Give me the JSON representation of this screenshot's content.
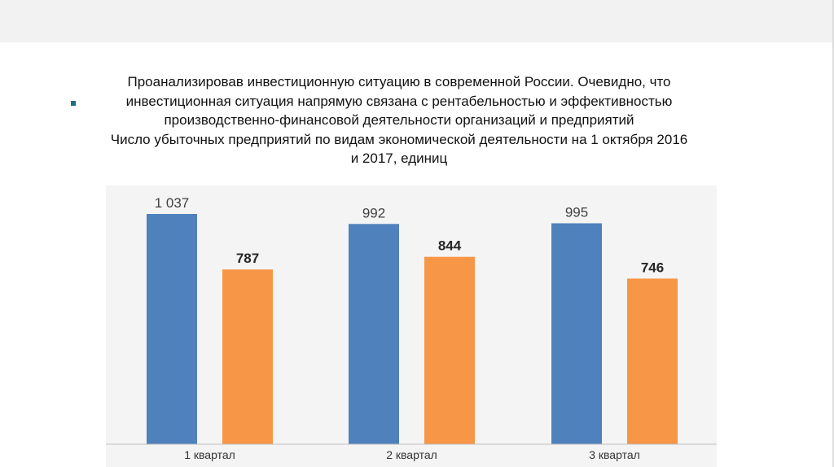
{
  "slide": {
    "lines": [
      "Проанализировав инвестиционную ситуацию в современной России. Очевидно, что",
      "инвестиционная ситуация напрямую связана с рентабельностью и эффективностью",
      "производственно-финансовой деятельности организаций и предприятий",
      "Число убыточных предприятий по видам экономической деятельности на 1 октября 2016",
      "и 2017, единиц"
    ]
  },
  "chart_data": {
    "type": "bar",
    "title": "Число убыточных предприятий по видам экономической деятельности на 1 октября 2016 и 2017, единиц",
    "categories": [
      "1 квартал",
      "2 квартал",
      "3 квартал"
    ],
    "series": [
      {
        "values": [
          1037,
          992,
          995
        ],
        "labels": [
          "1 037",
          "992",
          "995"
        ],
        "color": "#4f81bd"
      },
      {
        "values": [
          787,
          844,
          746
        ],
        "labels": [
          "787",
          "844",
          "746"
        ],
        "color": "#f79646"
      }
    ],
    "ylim": [
      0,
      1037
    ],
    "grid": false
  }
}
